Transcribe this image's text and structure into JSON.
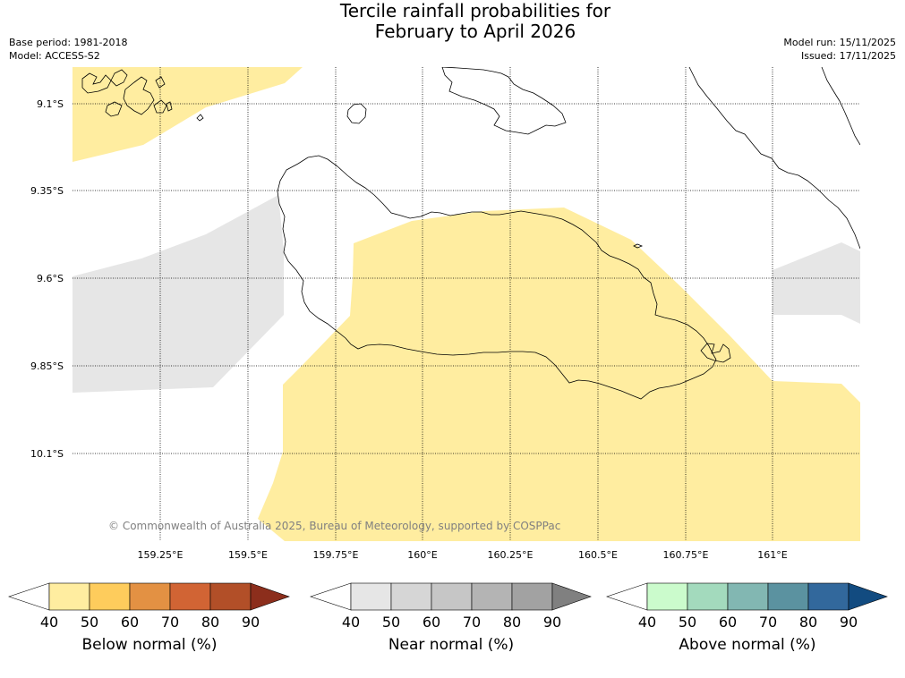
{
  "header": {
    "title_line1": "Tercile rainfall probabilities for",
    "title_line2": "February to April 2026",
    "base_period": "Base period: 1981-2018",
    "model": "Model: ACCESS-S2",
    "model_run": "Model run: 15/11/2025",
    "issued": "Issued: 17/11/2025"
  },
  "map": {
    "lat_labels": [
      "9.1°S",
      "9.35°S",
      "9.6°S",
      "9.85°S",
      "10.1°S"
    ],
    "lon_labels": [
      "159.25°E",
      "159.5°E",
      "159.75°E",
      "160°E",
      "160.25°E",
      "160.5°E",
      "160.75°E",
      "161°E"
    ],
    "copyright": "© Commonwealth of Australia 2025, Bureau of Meteorology, supported by COSPPac",
    "land_color": "#ffffff",
    "coast_color": "#000000",
    "grid_color": "#000000"
  },
  "legends": [
    {
      "title": "Below normal (%)",
      "ticks": [
        "40",
        "50",
        "60",
        "70",
        "80",
        "90"
      ],
      "colors": [
        "#ffffff",
        "#ffeda0",
        "#fecc5c",
        "#e39143",
        "#d16434",
        "#b24f28",
        "#8c2e1c"
      ]
    },
    {
      "title": "Near normal (%)",
      "ticks": [
        "40",
        "50",
        "60",
        "70",
        "80",
        "90"
      ],
      "colors": [
        "#ffffff",
        "#e6e6e6",
        "#d6d6d6",
        "#c6c6c6",
        "#b4b4b4",
        "#a2a2a2",
        "#808080"
      ]
    },
    {
      "title": "Above normal (%)",
      "ticks": [
        "40",
        "50",
        "60",
        "70",
        "80",
        "90"
      ],
      "colors": [
        "#ffffff",
        "#cbfbcc",
        "#a3dabd",
        "#82b7b2",
        "#5b92a0",
        "#32689c",
        "#124b80"
      ]
    }
  ],
  "categories": {
    "below_normal_color": "#ffeda0",
    "near_normal_color": "#e6e6e6"
  }
}
